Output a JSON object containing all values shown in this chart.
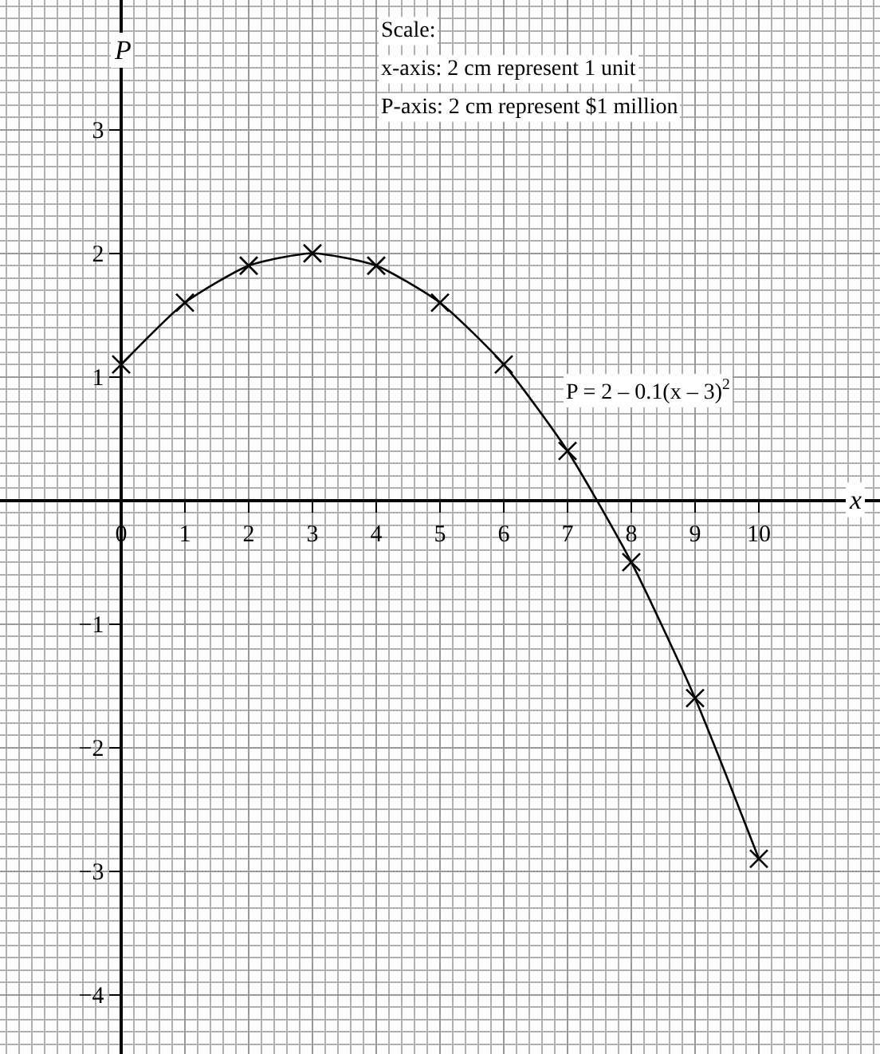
{
  "chart_data": {
    "type": "line",
    "xlabel": "x",
    "ylabel": "P",
    "x": [
      0,
      1,
      2,
      3,
      4,
      5,
      6,
      7,
      8,
      9,
      10
    ],
    "series": [
      {
        "color": "#000000",
        "values": [
          1.1,
          1.6,
          1.9,
          2.0,
          1.9,
          1.6,
          1.1,
          0.4,
          -0.5,
          -1.6,
          -2.9
        ]
      }
    ],
    "marker": "cross",
    "line_style": "solid",
    "grid": true,
    "xlim": [
      -1.9,
      11.9
    ],
    "ylim": [
      -4.48,
      4.05
    ],
    "xticks": [
      0,
      1,
      2,
      3,
      4,
      5,
      6,
      7,
      8,
      9,
      10
    ],
    "yticks": [
      -4,
      -3,
      -2,
      -1,
      1,
      2,
      3
    ],
    "annotations": [
      "Scale:",
      "x-axis: 2 cm represent 1 unit",
      "P-axis: 2 cm represent $1 million",
      "P = 2 – 0.1(x – 3)$^{2}$"
    ]
  }
}
